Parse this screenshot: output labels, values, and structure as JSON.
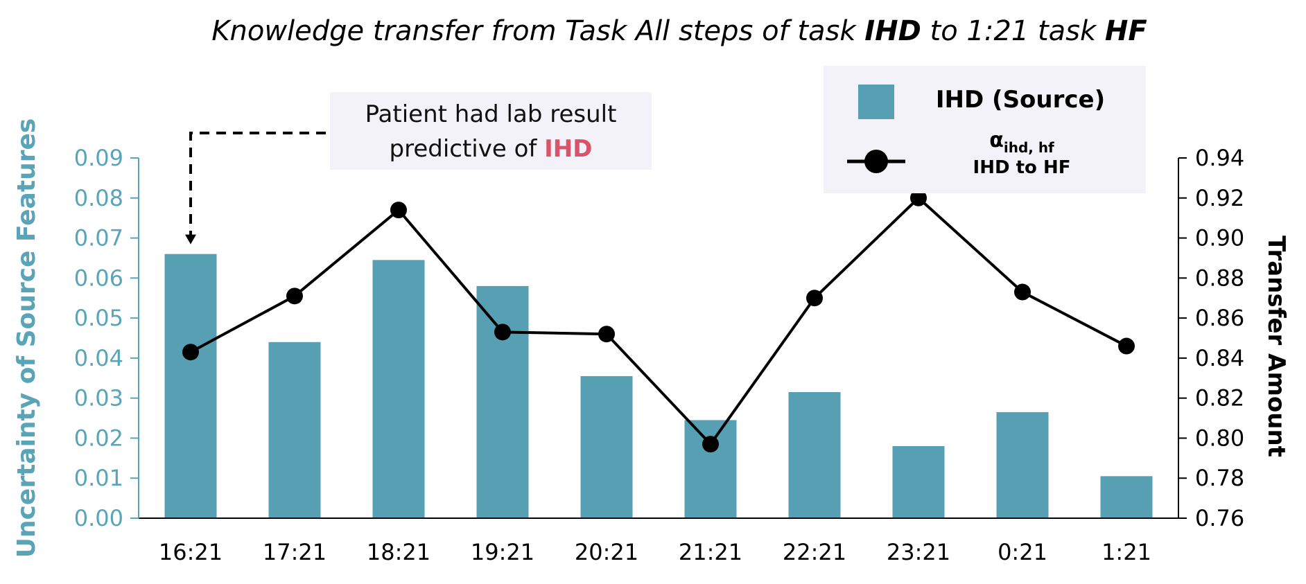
{
  "chart_data": {
    "type": "bar+line",
    "title": {
      "parts": [
        {
          "text": "Knowledge transfer from Task All steps of task ",
          "bold": false
        },
        {
          "text": "IHD",
          "bold": true
        },
        {
          "text": " to 1:21 task ",
          "bold": false
        },
        {
          "text": "HF",
          "bold": true
        }
      ]
    },
    "categories": [
      "16:21",
      "17:21",
      "18:21",
      "19:21",
      "20:21",
      "21:21",
      "22:21",
      "23:21",
      "0:21",
      "1:21"
    ],
    "series": [
      {
        "name": "IHD (Source)",
        "type": "bar",
        "axis": "left",
        "color": "#579fb3",
        "values": [
          0.066,
          0.044,
          0.0645,
          0.058,
          0.0355,
          0.0245,
          0.0315,
          0.018,
          0.0265,
          0.0105
        ]
      },
      {
        "name_main": "α",
        "name_sub": "ihd, hf",
        "name_line2": "IHD to HF",
        "type": "line",
        "axis": "right",
        "color": "#000000",
        "values": [
          0.843,
          0.871,
          0.914,
          0.853,
          0.852,
          0.797,
          0.87,
          0.92,
          0.873,
          0.846
        ]
      }
    ],
    "y_left": {
      "label": "Uncertainty of Source Features",
      "ylim": [
        0,
        0.09
      ],
      "ticks": [
        "0.00",
        "0.01",
        "0.02",
        "0.03",
        "0.04",
        "0.05",
        "0.06",
        "0.07",
        "0.08",
        "0.09"
      ],
      "color": "#5aa4b8"
    },
    "y_right": {
      "label": "Transfer Amount",
      "ylim": [
        0.76,
        0.94
      ],
      "ticks": [
        "0.76",
        "0.78",
        "0.80",
        "0.82",
        "0.84",
        "0.86",
        "0.88",
        "0.90",
        "0.92",
        "0.94"
      ]
    },
    "annotation": {
      "line1": "Patient had lab result",
      "line2_prefix": "predictive of ",
      "line2_highlight": "IHD",
      "highlight_color": "#d9536b",
      "target_category": "16:21"
    },
    "legend_position": "top-right",
    "grid": false
  }
}
